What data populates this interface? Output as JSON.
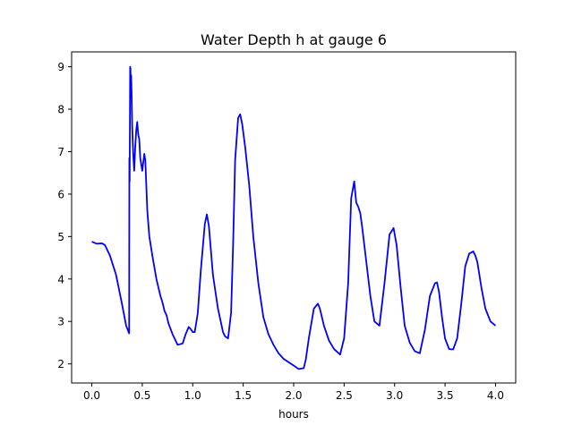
{
  "chart_data": {
    "type": "line",
    "title": "Water Depth h at gauge 6",
    "xlabel": "hours",
    "ylabel": "",
    "xlim": [
      -0.2,
      4.2
    ],
    "ylim": [
      1.55,
      9.35
    ],
    "xticks": [
      0.0,
      0.5,
      1.0,
      1.5,
      2.0,
      2.5,
      3.0,
      3.5,
      4.0
    ],
    "xtick_labels": [
      "0.0",
      "0.5",
      "1.0",
      "1.5",
      "2.0",
      "2.5",
      "3.0",
      "3.5",
      "4.0"
    ],
    "yticks": [
      2,
      3,
      4,
      5,
      6,
      7,
      8,
      9
    ],
    "ytick_labels": [
      "2",
      "3",
      "4",
      "5",
      "6",
      "7",
      "8",
      "9"
    ],
    "grid": false,
    "legend": "none",
    "series": [
      {
        "color": "#0000ff",
        "x": [
          0.0,
          0.05,
          0.1,
          0.13,
          0.18,
          0.24,
          0.3,
          0.34,
          0.37,
          0.372,
          0.375,
          0.38,
          0.383,
          0.386,
          0.39,
          0.395,
          0.4,
          0.41,
          0.42,
          0.43,
          0.44,
          0.45,
          0.46,
          0.47,
          0.48,
          0.5,
          0.52,
          0.53,
          0.55,
          0.57,
          0.6,
          0.64,
          0.68,
          0.7,
          0.72,
          0.74,
          0.76,
          0.8,
          0.85,
          0.9,
          0.93,
          0.96,
          0.98,
          1.0,
          1.02,
          1.05,
          1.08,
          1.12,
          1.14,
          1.16,
          1.2,
          1.25,
          1.3,
          1.32,
          1.35,
          1.38,
          1.4,
          1.42,
          1.45,
          1.47,
          1.49,
          1.52,
          1.56,
          1.6,
          1.65,
          1.7,
          1.75,
          1.8,
          1.85,
          1.9,
          2.0,
          2.05,
          2.1,
          2.12,
          2.15,
          2.2,
          2.24,
          2.26,
          2.3,
          2.35,
          2.4,
          2.46,
          2.5,
          2.54,
          2.57,
          2.6,
          2.62,
          2.64,
          2.66,
          2.68,
          2.72,
          2.76,
          2.8,
          2.85,
          2.9,
          2.95,
          2.99,
          3.02,
          3.06,
          3.1,
          3.15,
          3.2,
          3.25,
          3.3,
          3.35,
          3.4,
          3.42,
          3.44,
          3.47,
          3.5,
          3.54,
          3.58,
          3.62,
          3.66,
          3.7,
          3.74,
          3.78,
          3.8,
          3.82,
          3.86,
          3.9,
          3.95,
          4.0
        ],
        "y": [
          4.88,
          4.83,
          4.84,
          4.8,
          4.55,
          4.1,
          3.4,
          2.9,
          2.72,
          6.85,
          6.3,
          9.0,
          8.95,
          8.4,
          8.8,
          8.3,
          7.6,
          6.95,
          6.55,
          7.1,
          7.5,
          7.7,
          7.4,
          7.3,
          6.85,
          6.55,
          6.95,
          6.8,
          5.6,
          5.0,
          4.55,
          4.0,
          3.6,
          3.45,
          3.25,
          3.15,
          2.95,
          2.7,
          2.45,
          2.48,
          2.7,
          2.87,
          2.82,
          2.75,
          2.75,
          3.2,
          4.2,
          5.3,
          5.52,
          5.25,
          4.1,
          3.3,
          2.75,
          2.65,
          2.6,
          3.2,
          4.8,
          6.8,
          7.8,
          7.88,
          7.65,
          7.1,
          6.2,
          5.0,
          3.9,
          3.1,
          2.7,
          2.45,
          2.25,
          2.12,
          1.96,
          1.88,
          1.9,
          2.1,
          2.6,
          3.3,
          3.42,
          3.3,
          2.9,
          2.55,
          2.35,
          2.22,
          2.6,
          3.9,
          5.9,
          6.3,
          5.8,
          5.7,
          5.55,
          5.2,
          4.4,
          3.6,
          3.0,
          2.9,
          3.9,
          5.05,
          5.2,
          4.8,
          3.8,
          2.9,
          2.5,
          2.3,
          2.25,
          2.8,
          3.6,
          3.9,
          3.92,
          3.7,
          3.1,
          2.6,
          2.35,
          2.34,
          2.6,
          3.4,
          4.3,
          4.6,
          4.65,
          4.55,
          4.4,
          3.8,
          3.3,
          3.0,
          2.9
        ]
      }
    ]
  }
}
